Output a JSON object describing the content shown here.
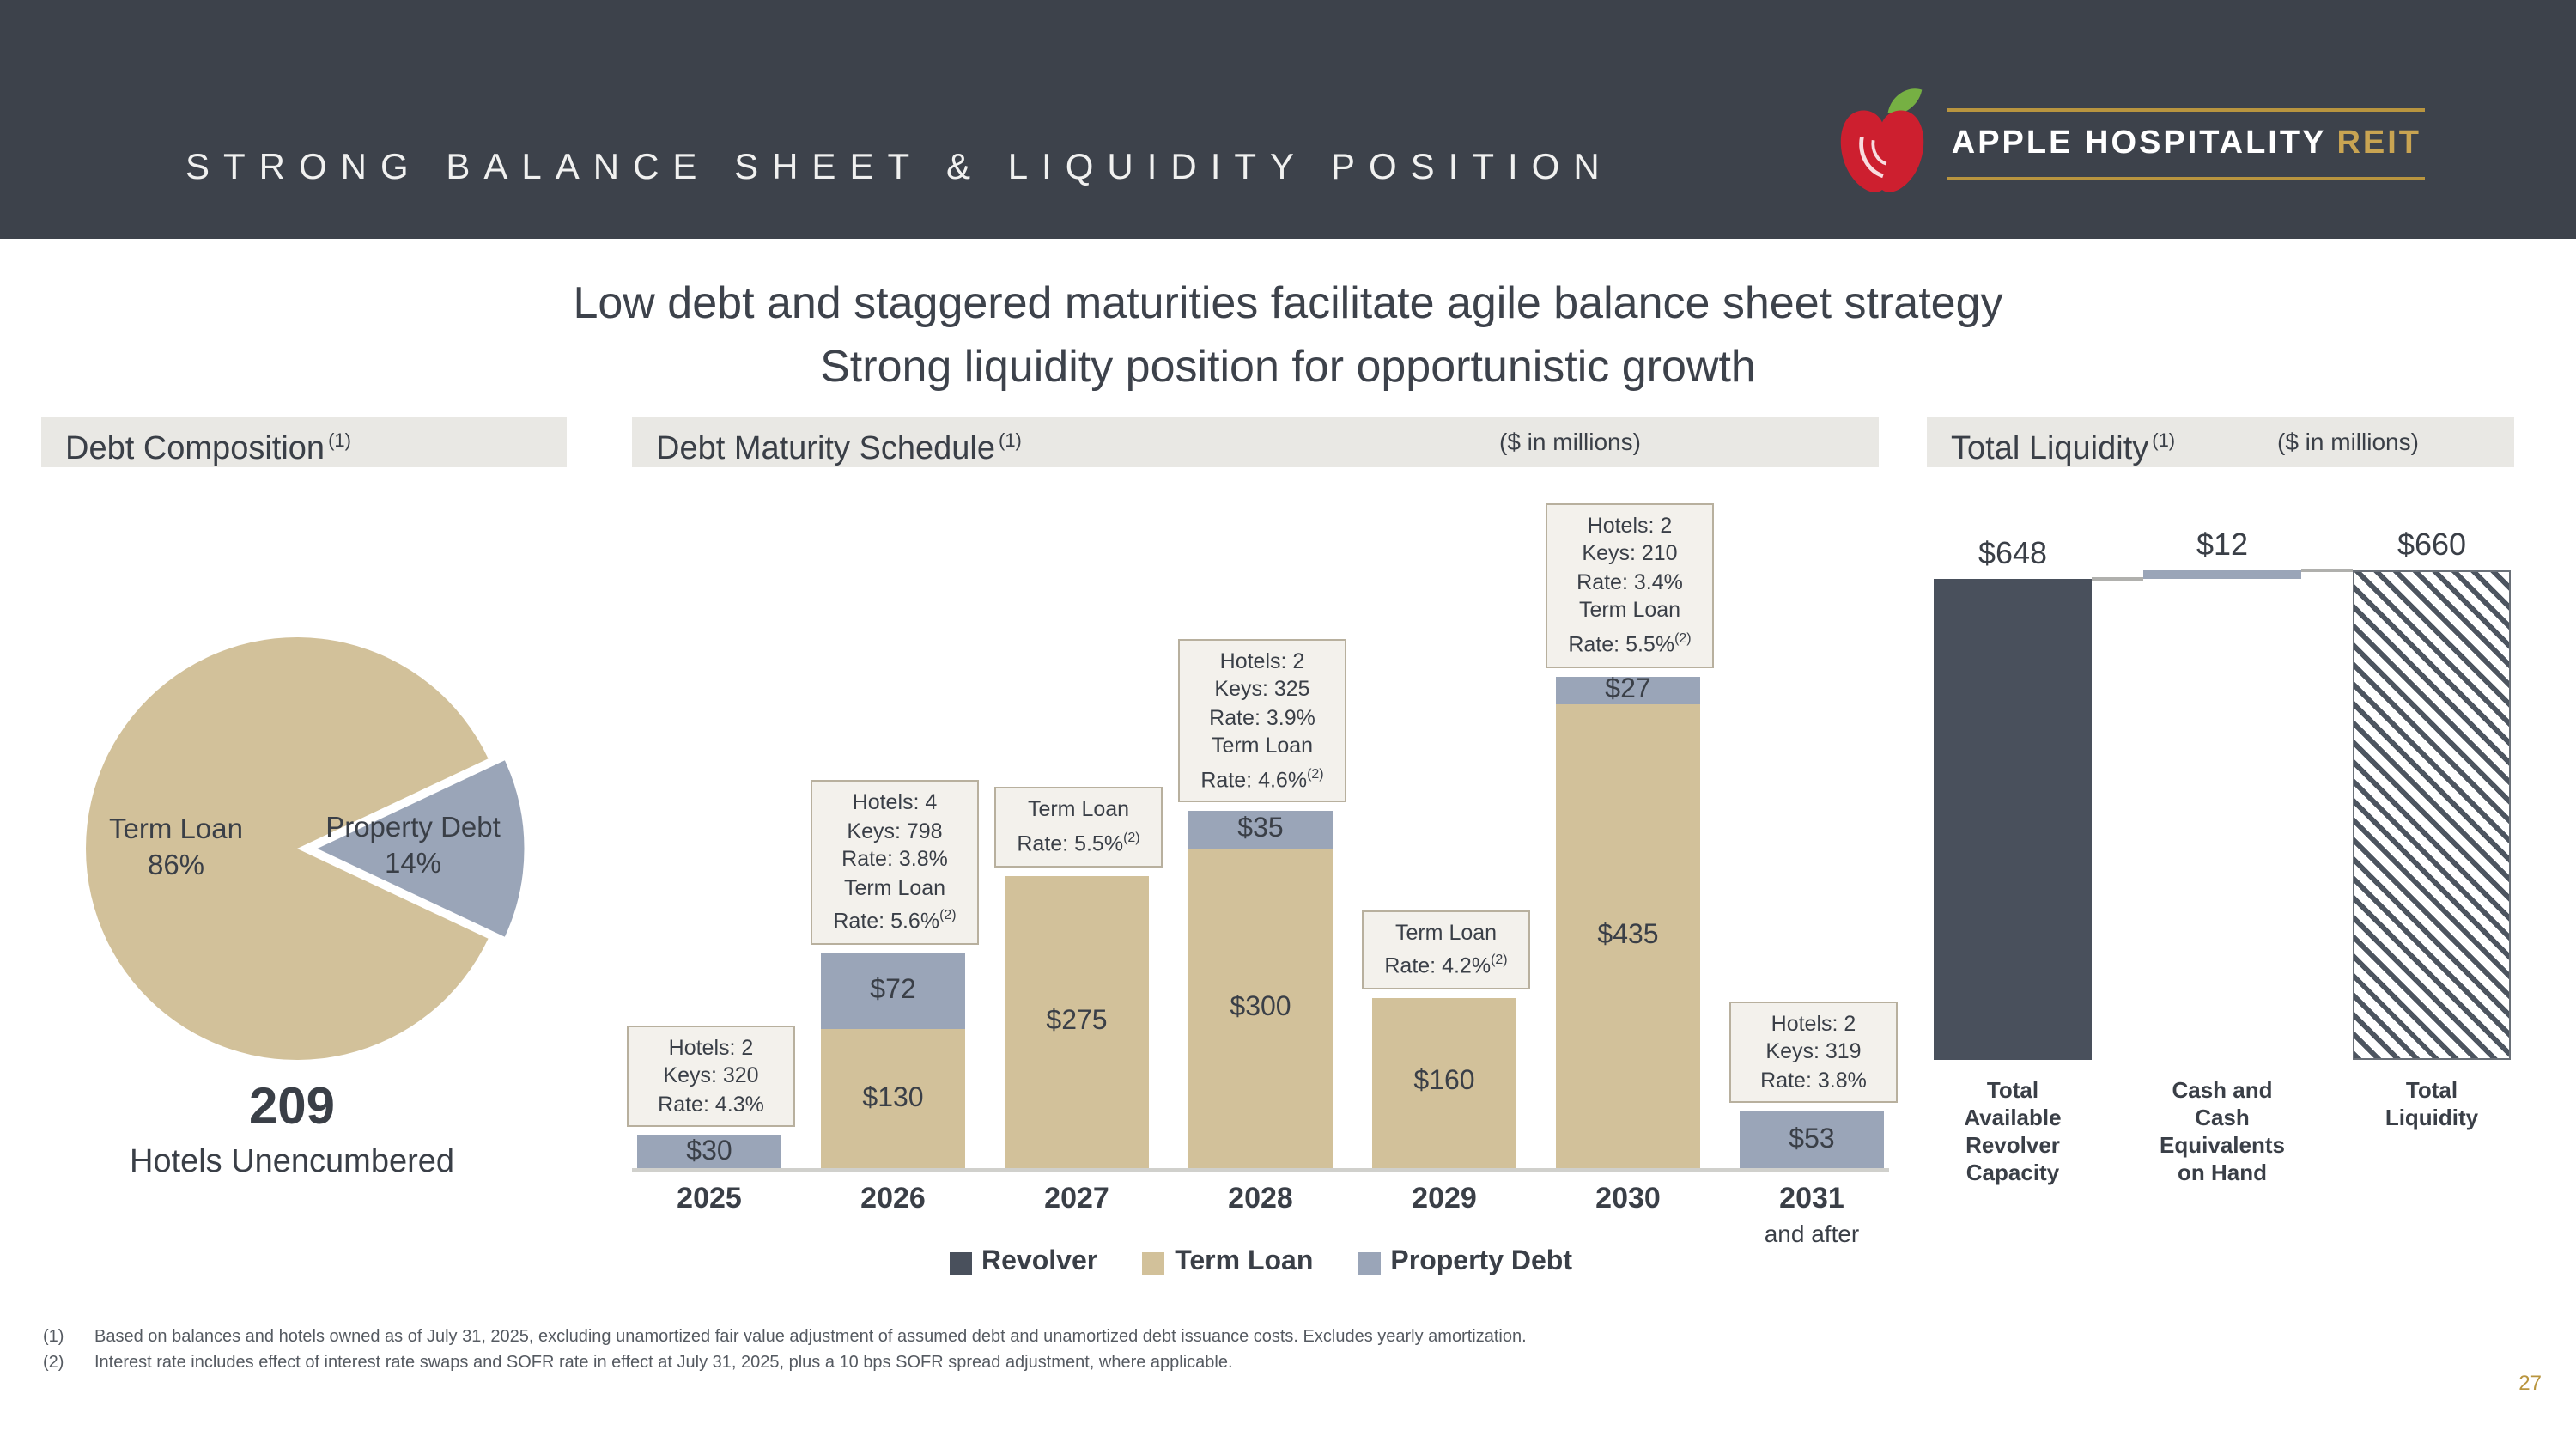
{
  "header": {
    "title": "STRONG BALANCE SHEET & LIQUIDITY POSITION",
    "logo_name": "APPLE HOSPITALITY",
    "logo_suffix": "REIT"
  },
  "subtitle": {
    "line1": "Low debt and staggered maturities facilitate agile balance sheet strategy",
    "line2": "Strong liquidity position for opportunistic growth"
  },
  "sections": {
    "debt_composition": {
      "title": "Debt Composition",
      "footnote_ref": "(1)"
    },
    "debt_maturity": {
      "title": "Debt Maturity Schedule",
      "footnote_ref": "(1)",
      "units": "($ in millions)"
    },
    "total_liquidity": {
      "title": "Total Liquidity",
      "footnote_ref": "(1)",
      "units": "($ in millions)"
    }
  },
  "colors": {
    "header_bg": "#3d424b",
    "term_loan": "#d2c19a",
    "property_debt": "#9aa5b8",
    "revolver": "#49505c",
    "gold": "#b9953f",
    "apple_red": "#cd1f2f",
    "leaf_green": "#76b043"
  },
  "chart_data": [
    {
      "id": "debt-composition",
      "type": "pie",
      "title": "Debt Composition",
      "labels": [
        "Term Loan",
        "Property Debt"
      ],
      "values": [
        86,
        14
      ],
      "unit": "%",
      "colors": [
        "#d2c19a",
        "#9aa5b8"
      ],
      "callout": {
        "number": "209",
        "caption": "Hotels Unencumbered"
      }
    },
    {
      "id": "debt-maturity-schedule",
      "type": "bar",
      "stacked": true,
      "title": "Debt Maturity Schedule",
      "units": "$ in millions",
      "categories": [
        "2025",
        "2026",
        "2027",
        "2028",
        "2029",
        "2030",
        "2031"
      ],
      "last_category_suffix": "and after",
      "value_prefix": "$",
      "ylim": [
        0,
        480
      ],
      "series": [
        {
          "name": "Revolver",
          "color": "#49505c",
          "values": [
            0,
            0,
            0,
            0,
            0,
            0,
            0
          ]
        },
        {
          "name": "Term Loan",
          "color": "#d2c19a",
          "values": [
            0,
            130,
            275,
            300,
            160,
            435,
            0
          ]
        },
        {
          "name": "Property Debt",
          "color": "#9aa5b8",
          "values": [
            30,
            72,
            0,
            35,
            0,
            27,
            53
          ]
        }
      ],
      "annotations": [
        [
          "Hotels: 2",
          "Keys: 320",
          "Rate: 4.3%"
        ],
        [
          "Hotels: 4",
          "Keys: 798",
          "Rate: 3.8%",
          "Term Loan",
          "Rate: 5.6%(2)"
        ],
        [
          "Term Loan",
          "Rate: 5.5%(2)"
        ],
        [
          "Hotels: 2",
          "Keys: 325",
          "Rate: 3.9%",
          "Term Loan",
          "Rate: 4.6%(2)"
        ],
        [
          "Term Loan",
          "Rate: 4.2%(2)"
        ],
        [
          "Hotels: 2",
          "Keys: 210",
          "Rate: 3.4%",
          "Term Loan",
          "Rate: 5.5%(2)"
        ],
        [
          "Hotels: 2",
          "Keys: 319",
          "Rate: 3.8%"
        ]
      ]
    },
    {
      "id": "total-liquidity",
      "type": "waterfall",
      "title": "Total Liquidity",
      "units": "$ in millions",
      "bars": [
        {
          "label": "Total\nAvailable\nRevolver\nCapacity",
          "value": 648,
          "start": 0,
          "value_label": "$648",
          "style": "revolver"
        },
        {
          "label": "Cash and\nCash\nEquivalents\non Hand",
          "value": 12,
          "start": 648,
          "value_label": "$12",
          "style": "cash"
        },
        {
          "label": "Total\nLiquidity",
          "value": 660,
          "start": 0,
          "value_label": "$660",
          "style": "hatched"
        }
      ]
    }
  ],
  "footnotes": [
    {
      "ref": "(1)",
      "text": "Based on balances and hotels owned as of July 31, 2025, excluding unamortized fair value adjustment of assumed debt and unamortized debt issuance costs. Excludes yearly amortization."
    },
    {
      "ref": "(2)",
      "text": "Interest rate includes effect of interest rate swaps and SOFR rate in effect at July 31, 2025, plus a 10 bps SOFR spread adjustment, where applicable."
    }
  ],
  "page_number": "27"
}
